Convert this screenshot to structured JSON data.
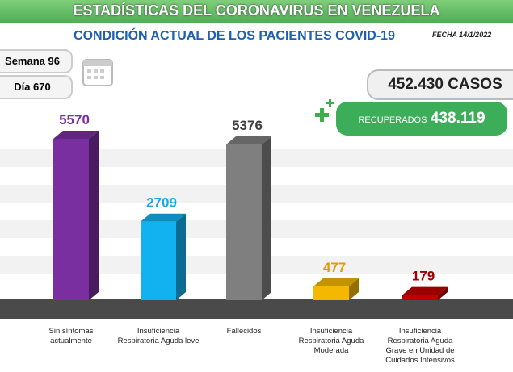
{
  "header": {
    "title": "ESTADÍSTICAS DEL CORONAVIRUS EN VENEZUELA",
    "subtitle": "CONDICIÓN ACTUAL DE LOS PACIENTES COVID-19",
    "date": "FECHA 14/1/2022",
    "week": "Semana 96",
    "day": "Día 670",
    "cases": "452.430 CASOS",
    "recovered_label": "RECUPERADOS",
    "recovered_value": "438.119"
  },
  "chart_data": {
    "type": "bar",
    "categories": [
      "Sin síntomas actualmente",
      "Insuficiencia Respiratoria Aguda leve",
      "Fallecidos",
      "Insuficiencia Respiratoria Aguda Moderada",
      "Insuficiencia Respiratoria Aguda Grave en Unidad de Cuidados Intensivos"
    ],
    "values": [
      5570,
      2709,
      5376,
      477,
      179
    ],
    "colors": [
      "#7a2fa0",
      "#12b2f0",
      "#7f7f7f",
      "#f5b800",
      "#c00000"
    ],
    "label_colors": [
      "#7a2fa0",
      "#1aa8e8",
      "#404040",
      "#e29a00",
      "#a00000"
    ]
  }
}
